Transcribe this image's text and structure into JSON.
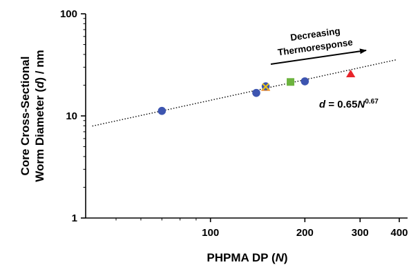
{
  "chart_data": {
    "type": "scatter",
    "title": "",
    "x_scale": "log",
    "y_scale": "log",
    "xlim": [
      40,
      400
    ],
    "ylim": [
      1,
      100
    ],
    "x_ticks": [
      100,
      200,
      300,
      400
    ],
    "x_tick_labels": [
      "100",
      "200",
      "300",
      "400"
    ],
    "y_ticks": [
      1,
      10,
      100
    ],
    "y_tick_labels": [
      "1",
      "10",
      "100"
    ],
    "xlabel": {
      "prefix": "PHPMA DP (",
      "var": "N",
      "suffix": ")"
    },
    "ylabel": {
      "line1": "Core Cross-Sectional",
      "line2_prefix": "Worm Diameter (",
      "line2_var": "d",
      "line2_suffix": ") / nm"
    },
    "grid": false,
    "legend": "none",
    "points": [
      {
        "x": 70,
        "y": 11.2,
        "marker": "circle",
        "color": "#3d55b0"
      },
      {
        "x": 140,
        "y": 16.8,
        "marker": "circle",
        "color": "#3d55b0"
      },
      {
        "x": 150,
        "y": 18.8,
        "marker": "triangle",
        "color": "#f0841e"
      },
      {
        "x": 150,
        "y": 19.5,
        "marker": "circle",
        "color": "#3d55b0"
      },
      {
        "x": 150,
        "y": 19.3,
        "marker": "cross",
        "color": "#e8c21a"
      },
      {
        "x": 180,
        "y": 21.5,
        "marker": "square",
        "color": "#6cb33e"
      },
      {
        "x": 200,
        "y": 21.8,
        "marker": "circle",
        "color": "#3d55b0"
      },
      {
        "x": 280,
        "y": 25.5,
        "marker": "triangle",
        "color": "#e8242a"
      }
    ],
    "fit": {
      "coef": 0.65,
      "exp": 0.67,
      "x_range": [
        42,
        390
      ],
      "style": "dotted",
      "label": {
        "prefix": "d",
        "middle": " = 0.65",
        "var": "N",
        "sup": "0.67"
      }
    },
    "annotation": {
      "line1": "Decreasing",
      "line2": "Thermoresponse",
      "arrow": "right"
    }
  }
}
